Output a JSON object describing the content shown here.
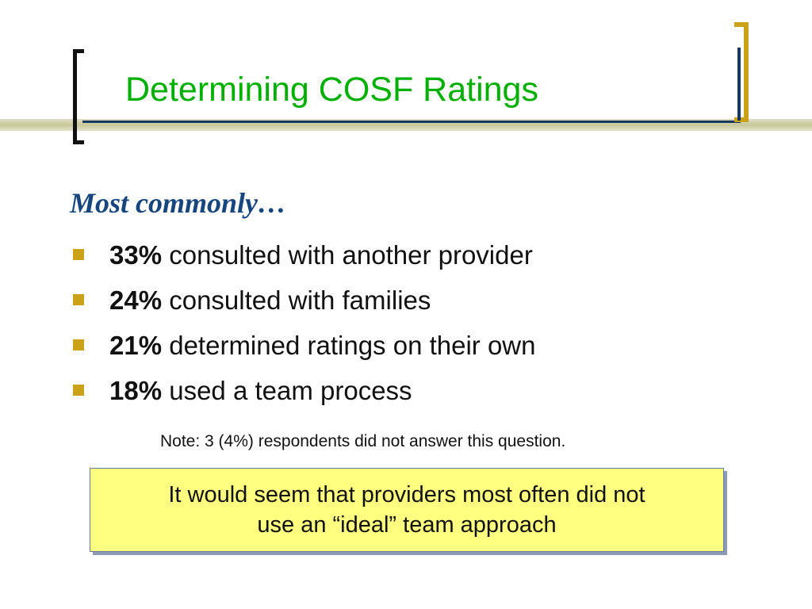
{
  "slide": {
    "title": "Determining COSF Ratings",
    "subheading": "Most commonly…",
    "bullets": [
      {
        "percent": "33%",
        "text": " consulted with another provider"
      },
      {
        "percent": "24%",
        "text": " consulted with families"
      },
      {
        "percent": "21%",
        "text": " determined ratings on their own"
      },
      {
        "percent": "18%",
        "text": " used a team process"
      }
    ],
    "note": "Note: 3 (4%) respondents did not answer this question.",
    "callout": {
      "line1": "It would seem that providers most often did not",
      "line2": "use an “ideal” team approach"
    }
  },
  "colors": {
    "title": "#00b000",
    "subheading": "#17467e",
    "bullet_marker": "#c9a21a",
    "bracket_right": "#c9a21a",
    "callout_background": "#ffff80"
  }
}
